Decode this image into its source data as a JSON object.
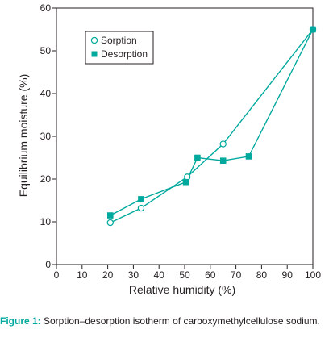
{
  "chart_data": {
    "type": "line",
    "xlabel": "Relative humidity (%)",
    "ylabel": "Equilibrium moisture (%)",
    "xlim": [
      0,
      100
    ],
    "ylim": [
      0,
      60
    ],
    "x_ticks": [
      "0",
      "10",
      "20",
      "30",
      "40",
      "50",
      "60",
      "70",
      "80",
      "90",
      "100"
    ],
    "y_ticks": [
      "0",
      "10",
      "20",
      "30",
      "40",
      "50",
      "60"
    ],
    "legend_position": "top-left",
    "grid": false,
    "line_color": "#00a99d",
    "series": [
      {
        "name": "Sorption",
        "marker": "open-circle",
        "x": [
          21,
          33,
          51,
          65,
          100
        ],
        "y": [
          9.8,
          13.2,
          20.5,
          28.2,
          55
        ]
      },
      {
        "name": "Desorption",
        "marker": "filled-square",
        "x": [
          21,
          33,
          50.5,
          55,
          65,
          75,
          100
        ],
        "y": [
          11.5,
          15.3,
          19.3,
          25,
          24.3,
          25.3,
          55
        ]
      }
    ]
  },
  "caption": {
    "label": "Figure 1:",
    "text": " Sorption–desorption isotherm of carboxymethylcellulose sodium."
  }
}
